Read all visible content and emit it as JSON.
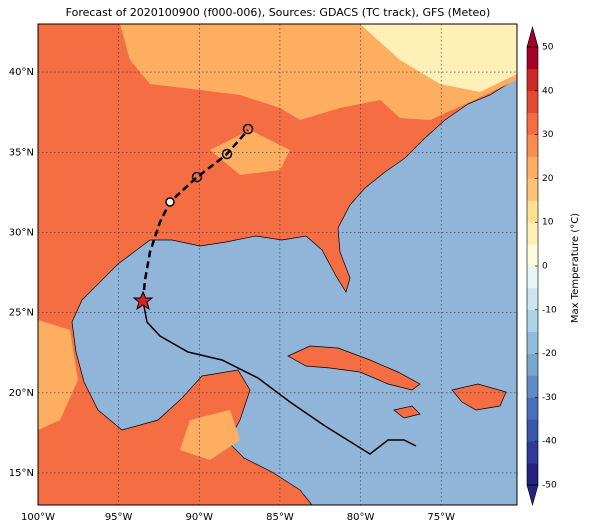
{
  "chart_data": {
    "type": "map",
    "title": "Forecast of 2020100900 (f000-006), Sources: GDACS (TC track), GFS (Meteo)",
    "xlim": [
      -100,
      -70.3
    ],
    "ylim": [
      13,
      43
    ],
    "xticks": [
      {
        "value": -100,
        "label": "100°W"
      },
      {
        "value": -95,
        "label": "95°W"
      },
      {
        "value": -90,
        "label": "90°W"
      },
      {
        "value": -85,
        "label": "85°W"
      },
      {
        "value": -80,
        "label": "80°W"
      },
      {
        "value": -75,
        "label": "75°W"
      }
    ],
    "yticks": [
      {
        "value": 15,
        "label": "15°N"
      },
      {
        "value": 20,
        "label": "20°N"
      },
      {
        "value": 25,
        "label": "25°N"
      },
      {
        "value": 30,
        "label": "30°N"
      },
      {
        "value": 35,
        "label": "35°N"
      },
      {
        "value": 40,
        "label": "40°N"
      }
    ],
    "grid": true,
    "colorbar": {
      "label": "Max Temperature (°C)",
      "lim": [
        -50,
        50
      ],
      "ticks": [
        -50,
        -40,
        -30,
        -20,
        -10,
        0,
        10,
        20,
        30,
        40,
        50
      ],
      "colors": [
        "#24237d",
        "#2f3a99",
        "#3b55ad",
        "#4a6fb8",
        "#5f8cc4",
        "#78a6cf",
        "#92bcdb",
        "#aed2e6",
        "#cbe6f0",
        "#e8f6f8",
        "#fffbdd",
        "#fff0b8",
        "#fee090",
        "#fdc275",
        "#fdae61",
        "#f88c51",
        "#f46d43",
        "#e34a33",
        "#cc2a26",
        "#a50026"
      ]
    }
  }
}
